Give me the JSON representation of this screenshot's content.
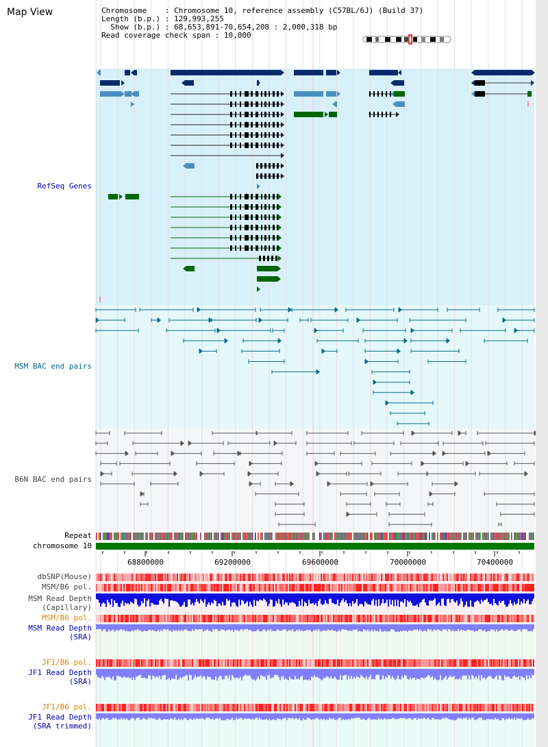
{
  "window": {
    "title": "Map View"
  },
  "info": {
    "chromosome_label": "Chromosome",
    "chromosome_value": "Chromosome 10, reference assembly (C57BL/6J) (Build 37)",
    "length_label": "Length (b.p.)",
    "length_value": "129,993,255",
    "show_label": "Show (b.p.)",
    "show_value": "68,653,891-70,654,208 : 2,000,318 bp",
    "coverage_label": "Read coverage check span",
    "coverage_value": "10,000"
  },
  "tracks": {
    "refseq": {
      "label": "RefSeq Genes",
      "color": "#0000aa"
    },
    "msm_bac": {
      "label": "MSM BAC end pairs",
      "color": "#006688"
    },
    "b6n_bac": {
      "label": "B6N BAC end pairs",
      "color": "#444444"
    },
    "repeat": {
      "label": "Repeat",
      "color": "#000000"
    },
    "chromosome": {
      "label": "chromosome 10",
      "color": "#000000"
    },
    "dbsnp": {
      "label": "dbSNP(Mouse)",
      "color": "#444444"
    },
    "msm_pol": {
      "label": "MSM/B6 pol.",
      "color": "#444444"
    },
    "msm_depth_cap": {
      "label_line1": "MSM Read Depth",
      "label_line2": "(Capillary)",
      "color": "#444444"
    },
    "msm_pol_sra": {
      "label": "MSM/B6 pol.",
      "color": "#e08000"
    },
    "msm_depth_sra": {
      "label_line1": "MSM Read Depth",
      "label_line2": "(SRA)",
      "color": "#0000aa"
    },
    "jf1_pol": {
      "label": "JF1/B6 pol.",
      "color": "#e08000"
    },
    "jf1_depth": {
      "label_line1": "JF1 Read Depth",
      "label_line2": "(SRA)",
      "color": "#0000aa"
    },
    "jf1_pol_trim": {
      "label": "JF1/B6 pol.",
      "color": "#e08000"
    },
    "jf1_depth_trim": {
      "label_line1": "JF1 Read Depth",
      "label_line2": "(SRA trimmed)",
      "color": "#0000aa"
    }
  },
  "axis": {
    "ticks": [
      "68800000",
      "69200000",
      "69600000",
      "70000000",
      "70400000"
    ]
  },
  "colors": {
    "gene_dark": "#0a2a6a",
    "gene_mid": "#4a8fbf",
    "gene_green": "#006600",
    "refseq_bg": "#d8f0fa",
    "msm_bg": "#e4f8fc",
    "b6n_bg": "#f4f6f8",
    "chromosome_bar": "#007700",
    "depth_blue": "#1010dd",
    "depth_light": "#8080ff",
    "snp_red": "#ee4444"
  }
}
